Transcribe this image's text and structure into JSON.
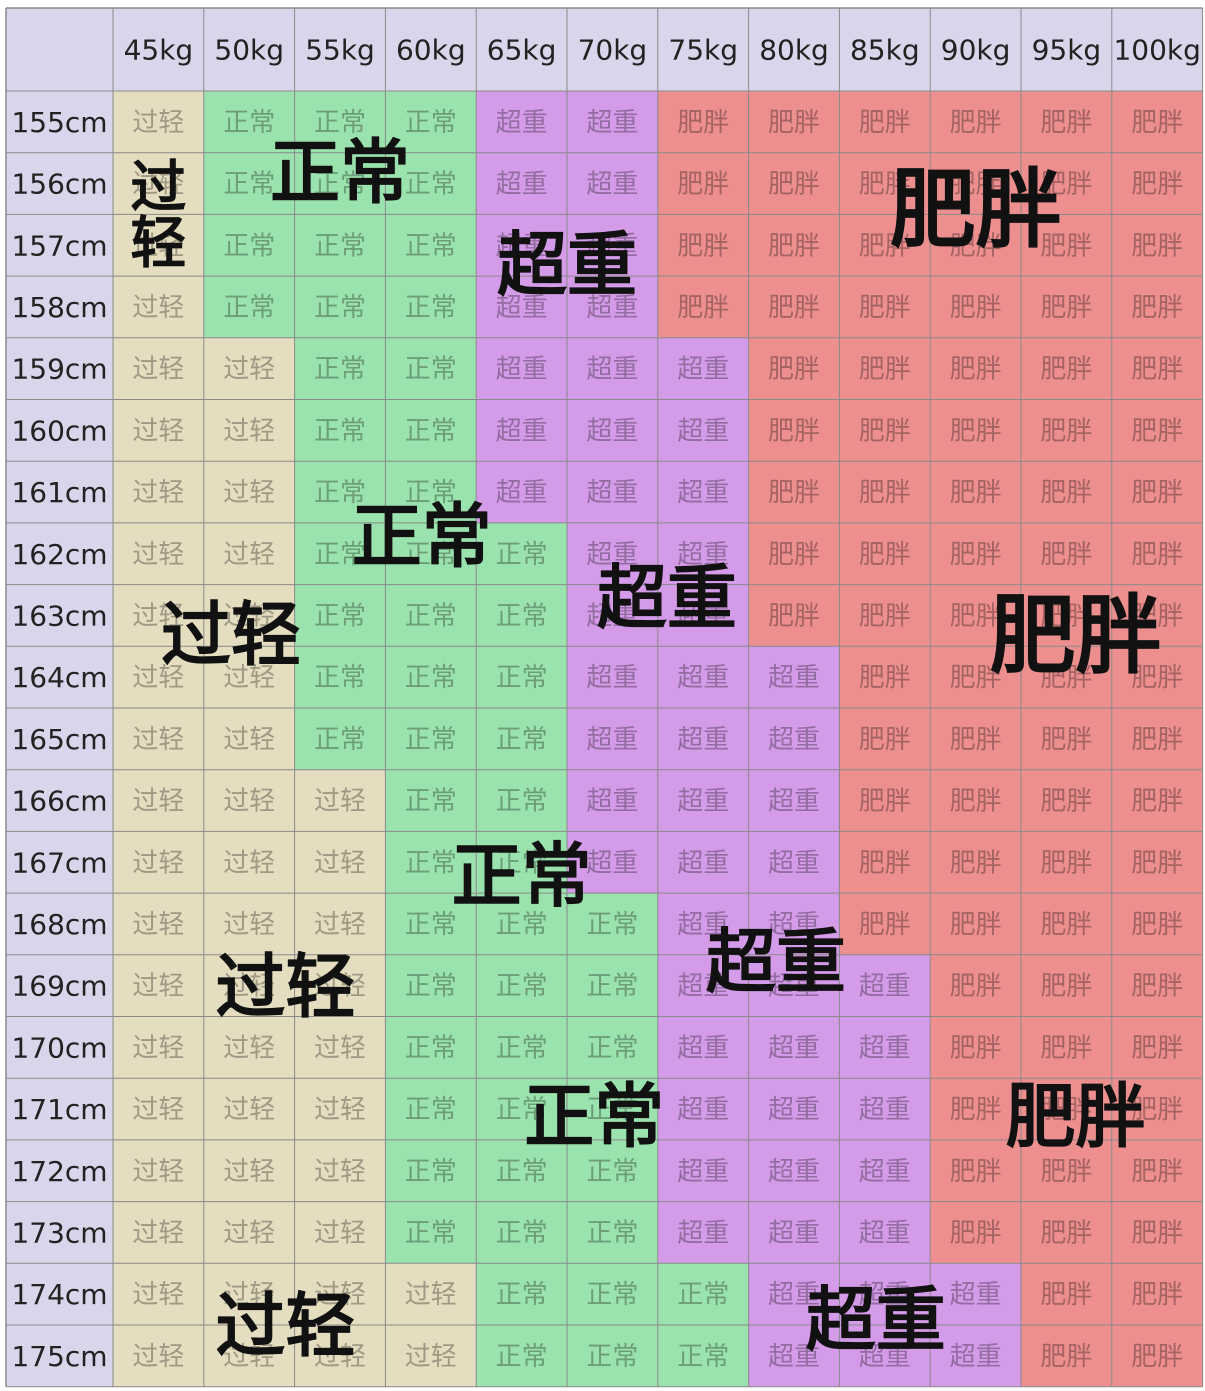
{
  "chart_data": {
    "type": "heatmap",
    "title": "",
    "xlabel": "",
    "ylabel": "",
    "columns": [
      "45kg",
      "50kg",
      "55kg",
      "60kg",
      "65kg",
      "70kg",
      "75kg",
      "80kg",
      "85kg",
      "90kg",
      "95kg",
      "100kg"
    ],
    "rows": [
      "155cm",
      "156cm",
      "157cm",
      "158cm",
      "159cm",
      "160cm",
      "161cm",
      "162cm",
      "163cm",
      "164cm",
      "165cm",
      "166cm",
      "167cm",
      "168cm",
      "169cm",
      "170cm",
      "171cm",
      "172cm",
      "173cm",
      "174cm",
      "175cm"
    ],
    "categories": {
      "U": {
        "label": "过轻",
        "color": "#e4ddbf"
      },
      "N": {
        "label": "正常",
        "color": "#9be3ae"
      },
      "O": {
        "label": "超重",
        "color": "#d49be8"
      },
      "F": {
        "label": "肥胖",
        "color": "#ee8f8f"
      }
    },
    "matrix": [
      [
        "U",
        "N",
        "N",
        "N",
        "O",
        "O",
        "F",
        "F",
        "F",
        "F",
        "F",
        "F"
      ],
      [
        "U",
        "N",
        "N",
        "N",
        "O",
        "O",
        "F",
        "F",
        "F",
        "F",
        "F",
        "F"
      ],
      [
        "U",
        "N",
        "N",
        "N",
        "O",
        "O",
        "F",
        "F",
        "F",
        "F",
        "F",
        "F"
      ],
      [
        "U",
        "N",
        "N",
        "N",
        "O",
        "O",
        "F",
        "F",
        "F",
        "F",
        "F",
        "F"
      ],
      [
        "U",
        "U",
        "N",
        "N",
        "O",
        "O",
        "O",
        "F",
        "F",
        "F",
        "F",
        "F"
      ],
      [
        "U",
        "U",
        "N",
        "N",
        "O",
        "O",
        "O",
        "F",
        "F",
        "F",
        "F",
        "F"
      ],
      [
        "U",
        "U",
        "N",
        "N",
        "O",
        "O",
        "O",
        "F",
        "F",
        "F",
        "F",
        "F"
      ],
      [
        "U",
        "U",
        "N",
        "N",
        "N",
        "O",
        "O",
        "F",
        "F",
        "F",
        "F",
        "F"
      ],
      [
        "U",
        "U",
        "N",
        "N",
        "N",
        "O",
        "O",
        "F",
        "F",
        "F",
        "F",
        "F"
      ],
      [
        "U",
        "U",
        "N",
        "N",
        "N",
        "O",
        "O",
        "O",
        "F",
        "F",
        "F",
        "F"
      ],
      [
        "U",
        "U",
        "N",
        "N",
        "N",
        "O",
        "O",
        "O",
        "F",
        "F",
        "F",
        "F"
      ],
      [
        "U",
        "U",
        "U",
        "N",
        "N",
        "O",
        "O",
        "O",
        "F",
        "F",
        "F",
        "F"
      ],
      [
        "U",
        "U",
        "U",
        "N",
        "N",
        "O",
        "O",
        "O",
        "F",
        "F",
        "F",
        "F"
      ],
      [
        "U",
        "U",
        "U",
        "N",
        "N",
        "N",
        "O",
        "O",
        "F",
        "F",
        "F",
        "F"
      ],
      [
        "U",
        "U",
        "U",
        "N",
        "N",
        "N",
        "O",
        "O",
        "O",
        "F",
        "F",
        "F"
      ],
      [
        "U",
        "U",
        "U",
        "N",
        "N",
        "N",
        "O",
        "O",
        "O",
        "F",
        "F",
        "F"
      ],
      [
        "U",
        "U",
        "U",
        "N",
        "N",
        "N",
        "O",
        "O",
        "O",
        "F",
        "F",
        "F"
      ],
      [
        "U",
        "U",
        "U",
        "N",
        "N",
        "N",
        "O",
        "O",
        "O",
        "F",
        "F",
        "F"
      ],
      [
        "U",
        "U",
        "U",
        "N",
        "N",
        "N",
        "O",
        "O",
        "O",
        "F",
        "F",
        "F"
      ],
      [
        "U",
        "U",
        "U",
        "U",
        "N",
        "N",
        "N",
        "O",
        "O",
        "O",
        "F",
        "F"
      ],
      [
        "U",
        "U",
        "U",
        "U",
        "N",
        "N",
        "N",
        "O",
        "O",
        "O",
        "F",
        "F"
      ]
    ],
    "annotations": [
      {
        "text": "过轻",
        "col": 0,
        "row": 1.5,
        "vertical": true
      },
      {
        "text": "正常",
        "col": 2,
        "row": 0.8
      },
      {
        "text": "超重",
        "col": 4.5,
        "row": 2.3
      },
      {
        "text": "肥胖",
        "col": 9,
        "row": 1.4
      },
      {
        "text": "正常",
        "col": 2.9,
        "row": 6.7
      },
      {
        "text": "过轻",
        "col": 0.8,
        "row": 8.3
      },
      {
        "text": "超重",
        "col": 5.6,
        "row": 7.7
      },
      {
        "text": "肥胖",
        "col": 10.1,
        "row": 8.3
      },
      {
        "text": "正常",
        "col": 4,
        "row": 12.2
      },
      {
        "text": "过轻",
        "col": 1.4,
        "row": 14
      },
      {
        "text": "超重",
        "col": 6.8,
        "row": 13.6
      },
      {
        "text": "正常",
        "col": 4.8,
        "row": 16.1
      },
      {
        "text": "肥胖",
        "col": 10.1,
        "row": 16.1
      },
      {
        "text": "过轻",
        "col": 1.4,
        "row": 19.5
      },
      {
        "text": "超重",
        "col": 7.9,
        "row": 19.4
      }
    ]
  }
}
